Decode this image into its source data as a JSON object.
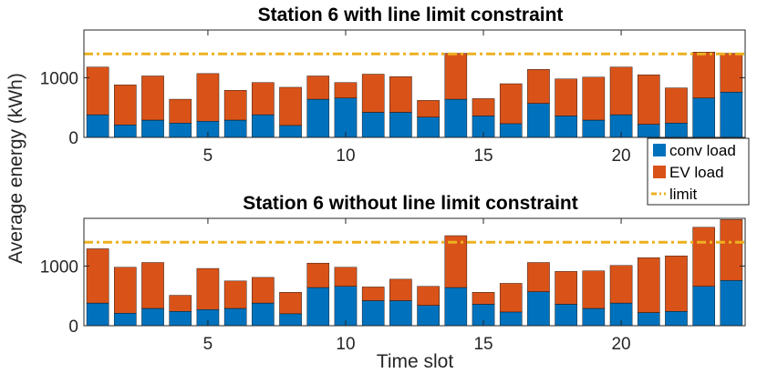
{
  "chart_data": {
    "type": "bar",
    "stacked": true,
    "shared_xlabel": "Time slot",
    "shared_ylabel": "Average energy (kWh)",
    "colors": {
      "conv": "#0072BD",
      "ev": "#D95319",
      "limit": "#EDB120"
    },
    "legend": {
      "placement": "right, between the two panels",
      "entries": [
        {
          "key": "conv",
          "label": "conv load"
        },
        {
          "key": "ev",
          "label": "EV load"
        },
        {
          "key": "limit",
          "label": "limit"
        }
      ]
    },
    "x": [
      1,
      2,
      3,
      4,
      5,
      6,
      7,
      8,
      9,
      10,
      11,
      12,
      13,
      14,
      15,
      16,
      17,
      18,
      19,
      20,
      21,
      22,
      23,
      24
    ],
    "xticks": [
      5,
      10,
      15,
      20
    ],
    "ylim": [
      0,
      1800
    ],
    "yticks": [
      0,
      1000
    ],
    "xlim": [
      0.5,
      24.5
    ],
    "limit": 1400,
    "panels": [
      {
        "title": "Station 6 with line limit constraint",
        "series": [
          {
            "name": "conv load",
            "values": [
              380,
              210,
              290,
              240,
              270,
              290,
              380,
              200,
              640,
              660,
              420,
              420,
              340,
              640,
              360,
              230,
              570,
              360,
              290,
              380,
              220,
              240,
              660,
              760
            ]
          },
          {
            "name": "EV load",
            "values": [
              800,
              670,
              740,
              400,
              800,
              500,
              540,
              640,
              390,
              260,
              640,
              600,
              280,
              770,
              290,
              670,
              570,
              620,
              720,
              800,
              830,
              590,
              770,
              650
            ]
          }
        ]
      },
      {
        "title": "Station 6 without line limit constraint",
        "series": [
          {
            "name": "conv load",
            "values": [
              380,
              210,
              290,
              240,
              270,
              290,
              380,
              200,
              640,
              660,
              420,
              420,
              340,
              640,
              360,
              230,
              570,
              360,
              290,
              380,
              220,
              240,
              660,
              760
            ]
          },
          {
            "name": "EV load",
            "values": [
              910,
              770,
              770,
              270,
              690,
              460,
              430,
              360,
              410,
              320,
              230,
              360,
              320,
              870,
              200,
              480,
              490,
              550,
              630,
              630,
              920,
              930,
              990,
              1020
            ]
          }
        ]
      }
    ]
  }
}
